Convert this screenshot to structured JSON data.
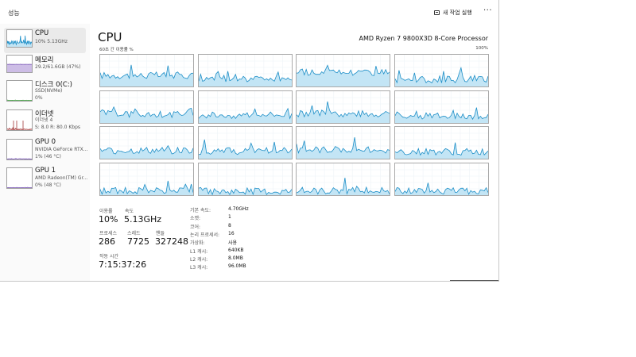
{
  "window": {
    "title": "성능"
  },
  "toolbar": {
    "run_task_label": "새 작업 실행",
    "more_label": "···"
  },
  "sidebar": {
    "items": [
      {
        "name": "CPU",
        "sub1": "10%  5.13GHz",
        "sub2": "",
        "sub3": "",
        "active": true,
        "color": "#1c8ec7",
        "fill": "#c3e5f5",
        "kind": "cpu"
      },
      {
        "name": "메모리",
        "sub1": "29.2/61.6GB (47%)",
        "sub2": "",
        "sub3": "",
        "active": false,
        "color": "#7a57b5",
        "fill": "#cdbde6",
        "kind": "mem"
      },
      {
        "name": "디스크 0(C:)",
        "sub1": "SSD(NVMe)",
        "sub2": "0%",
        "sub3": "",
        "active": false,
        "color": "#3c9b3c",
        "fill": "#d5efd5",
        "kind": "disk"
      },
      {
        "name": "이더넷",
        "sub1": "이더넷 4",
        "sub2": "S: 8.0  R: 80.0 Kbps",
        "sub3": "",
        "active": false,
        "color": "#a33a3a",
        "fill": "#f2d5d5",
        "kind": "eth"
      },
      {
        "name": "GPU 0",
        "sub1": "NVIDIA GeForce RTX...",
        "sub2": "1% (46 °C)",
        "sub3": "",
        "active": false,
        "color": "#7a57b5",
        "fill": "#e4dcf2",
        "kind": "gpu"
      },
      {
        "name": "GPU 1",
        "sub1": "AMD Radeon(TM) Gr...",
        "sub2": "0% (48 °C)",
        "sub3": "",
        "active": false,
        "color": "#7a57b5",
        "fill": "#e4dcf2",
        "kind": "gpu1"
      }
    ]
  },
  "main": {
    "title": "CPU",
    "processor": "AMD Ryzen 7 9800X3D 8-Core Processor",
    "axis_label": "60초 간 이용률 %",
    "axis_max": "100%",
    "line_color": "#1c8ec7",
    "fill_color": "#c3e5f5"
  },
  "stats": {
    "util_label": "이용률",
    "util_value": "10%",
    "speed_label": "속도",
    "speed_value": "5.13GHz",
    "proc_label": "프로세스",
    "proc_value": "286",
    "thread_label": "스레드",
    "thread_value": "7725",
    "handle_label": "핸들",
    "handle_value": "327248",
    "uptime_label": "작동 시간",
    "uptime_value": "7:15:37:26"
  },
  "specs": [
    {
      "key": "기본 속도:",
      "value": "4.70GHz"
    },
    {
      "key": "소켓:",
      "value": "1"
    },
    {
      "key": "코어:",
      "value": "8"
    },
    {
      "key": "논리 프로세서:",
      "value": "16"
    },
    {
      "key": "가상화:",
      "value": "사용"
    },
    {
      "key": "L1 캐시:",
      "value": "640KB"
    },
    {
      "key": "L2 캐시:",
      "value": "8.0MB"
    },
    {
      "key": "L3 캐시:",
      "value": "96.0MB"
    }
  ]
}
